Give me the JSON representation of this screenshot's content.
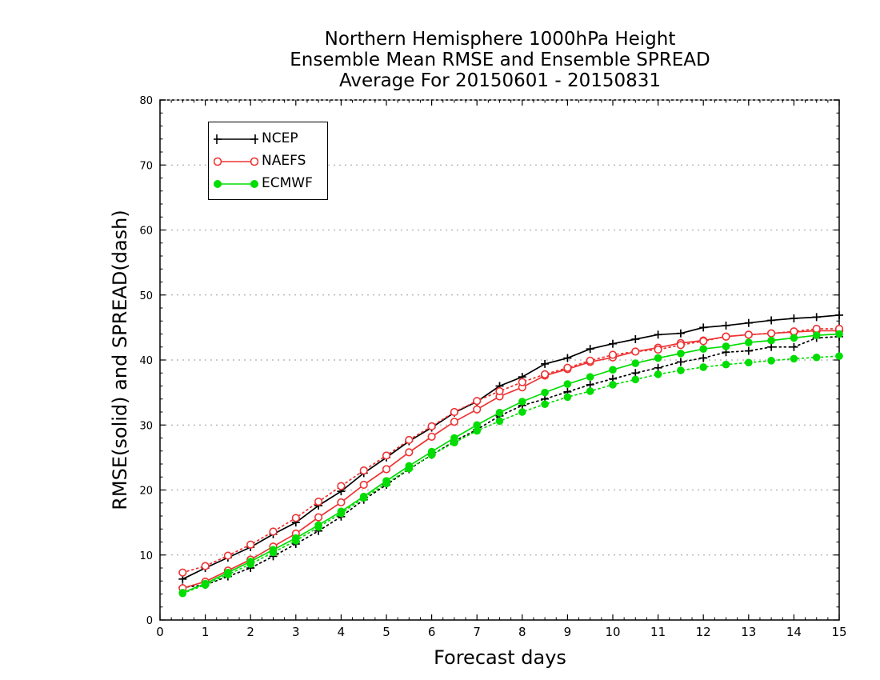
{
  "chart_data": {
    "type": "line",
    "title": [
      "Northern Hemisphere 1000hPa Height",
      "Ensemble Mean RMSE and Ensemble SPREAD",
      "Average For 20150601 - 20150831"
    ],
    "xlabel": "Forecast days",
    "ylabel": "RMSE(solid) and SPREAD(dash)",
    "xlim": [
      0,
      15
    ],
    "ylim": [
      0,
      80
    ],
    "xticks": [
      "0",
      "1",
      "2",
      "3",
      "4",
      "5",
      "6",
      "7",
      "8",
      "9",
      "10",
      "11",
      "12",
      "13",
      "14",
      "15"
    ],
    "yticks": [
      "0",
      "10",
      "20",
      "30",
      "40",
      "50",
      "60",
      "70",
      "80"
    ],
    "grid": "horizontal dotted",
    "legend_position": "top-left",
    "x": [
      0.5,
      1,
      1.5,
      2,
      2.5,
      3,
      3.5,
      4,
      4.5,
      5,
      5.5,
      6,
      6.5,
      7,
      7.5,
      8,
      8.5,
      9,
      9.5,
      10,
      10.5,
      11,
      11.5,
      12,
      12.5,
      13,
      13.5,
      14,
      14.5,
      15
    ],
    "series": [
      {
        "name": "NCEP",
        "metric": "RMSE",
        "style": "solid",
        "marker": "plus",
        "color": "#000000",
        "values": [
          6.3,
          8.0,
          9.6,
          11.2,
          13.2,
          15.0,
          17.6,
          19.8,
          22.6,
          25.0,
          27.5,
          29.6,
          31.9,
          33.6,
          36.0,
          37.4,
          39.4,
          40.3,
          41.7,
          42.5,
          43.2,
          43.9,
          44.1,
          45.0,
          45.3,
          45.7,
          46.1,
          46.4,
          46.6,
          46.9
        ]
      },
      {
        "name": "NCEP",
        "metric": "SPREAD",
        "style": "dotted",
        "marker": "plus",
        "color": "#000000",
        "values": [
          5.0,
          5.4,
          6.7,
          8.0,
          9.8,
          11.7,
          13.7,
          15.9,
          18.5,
          20.8,
          23.2,
          25.4,
          27.5,
          29.3,
          31.4,
          33.0,
          34.0,
          35.1,
          36.2,
          37.1,
          38.0,
          38.8,
          39.7,
          40.3,
          41.2,
          41.4,
          42.0,
          42.0,
          43.4,
          43.6
        ]
      },
      {
        "name": "NAEFS",
        "metric": "RMSE",
        "style": "solid",
        "marker": "open-circle",
        "color": "#ee3333",
        "values": [
          4.9,
          5.9,
          7.6,
          9.3,
          11.3,
          13.3,
          15.8,
          18.1,
          20.8,
          23.2,
          25.8,
          28.2,
          30.5,
          32.4,
          34.4,
          35.8,
          37.6,
          38.6,
          39.7,
          40.4,
          41.3,
          41.9,
          42.6,
          43.0,
          43.6,
          43.9,
          44.1,
          44.3,
          44.5,
          44.5
        ]
      },
      {
        "name": "NAEFS",
        "metric": "SPREAD",
        "style": "dotted",
        "marker": "open-circle",
        "color": "#ee3333",
        "values": [
          7.3,
          8.3,
          9.9,
          11.6,
          13.6,
          15.7,
          18.2,
          20.6,
          23.0,
          25.3,
          27.7,
          29.8,
          32.0,
          33.7,
          35.2,
          36.6,
          37.8,
          38.8,
          39.9,
          40.8,
          41.3,
          41.6,
          42.3,
          42.9,
          43.6,
          43.9,
          44.1,
          44.4,
          44.8,
          44.8
        ]
      },
      {
        "name": "ECMWF",
        "metric": "RMSE",
        "style": "solid",
        "marker": "filled-circle",
        "color": "#00dd00",
        "values": [
          4.2,
          5.6,
          7.3,
          9.0,
          10.8,
          12.6,
          14.6,
          16.7,
          19.0,
          21.4,
          23.7,
          25.9,
          28.0,
          30.0,
          31.9,
          33.6,
          35.0,
          36.3,
          37.4,
          38.5,
          39.5,
          40.3,
          41.0,
          41.7,
          42.1,
          42.7,
          43.0,
          43.4,
          43.8,
          44.0
        ]
      },
      {
        "name": "ECMWF",
        "metric": "SPREAD",
        "style": "dotted",
        "marker": "filled-circle",
        "color": "#00dd00",
        "values": [
          4.1,
          5.4,
          7.0,
          8.6,
          10.4,
          12.2,
          14.3,
          16.4,
          18.8,
          21.0,
          23.3,
          25.4,
          27.3,
          29.1,
          30.6,
          32.0,
          33.2,
          34.3,
          35.2,
          36.2,
          37.0,
          37.8,
          38.4,
          38.9,
          39.3,
          39.6,
          39.9,
          40.2,
          40.4,
          40.6
        ]
      }
    ]
  }
}
